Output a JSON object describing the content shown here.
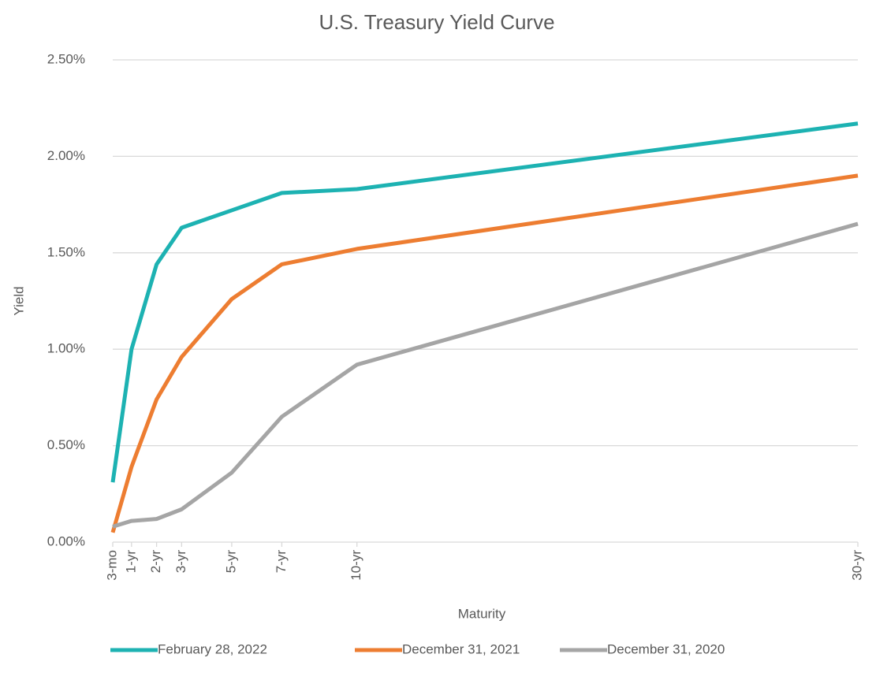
{
  "chart_data": {
    "type": "line",
    "title": "U.S. Treasury Yield Curve",
    "x_label": "Maturity",
    "y_label": "Yield",
    "x": [
      0.25,
      1,
      2,
      3,
      5,
      7,
      10,
      30
    ],
    "xlim": [
      0.25,
      30
    ],
    "xticks": [
      {
        "value": 0.25,
        "label": "3-mo"
      },
      {
        "value": 1,
        "label": "1-yr"
      },
      {
        "value": 2,
        "label": "2-yr"
      },
      {
        "value": 3,
        "label": "3-yr"
      },
      {
        "value": 5,
        "label": "5-yr"
      },
      {
        "value": 7,
        "label": "7-yr"
      },
      {
        "value": 10,
        "label": "10-yr"
      },
      {
        "value": 30,
        "label": "30-yr"
      }
    ],
    "ylim": [
      0,
      2.5
    ],
    "yticks": [
      {
        "value": 0,
        "label": "0.00%"
      },
      {
        "value": 0.5,
        "label": "0.50%"
      },
      {
        "value": 1,
        "label": "1.00%"
      },
      {
        "value": 1.5,
        "label": "1.50%"
      },
      {
        "value": 2,
        "label": "2.00%"
      },
      {
        "value": 2.5,
        "label": "2.50%"
      }
    ],
    "grid": true,
    "legend": "bottom",
    "series": [
      {
        "name": "February 28, 2022",
        "color": "#1db2b2",
        "values": [
          0.31,
          1.0,
          1.44,
          1.63,
          1.72,
          1.81,
          1.83,
          2.17
        ]
      },
      {
        "name": "December 31, 2021",
        "color": "#ed7d31",
        "values": [
          0.05,
          0.39,
          0.74,
          0.96,
          1.26,
          1.44,
          1.52,
          1.9
        ]
      },
      {
        "name": "December 31, 2020",
        "color": "#a5a5a5",
        "values": [
          0.08,
          0.11,
          0.12,
          0.17,
          0.36,
          0.65,
          0.92,
          1.65
        ]
      }
    ]
  }
}
